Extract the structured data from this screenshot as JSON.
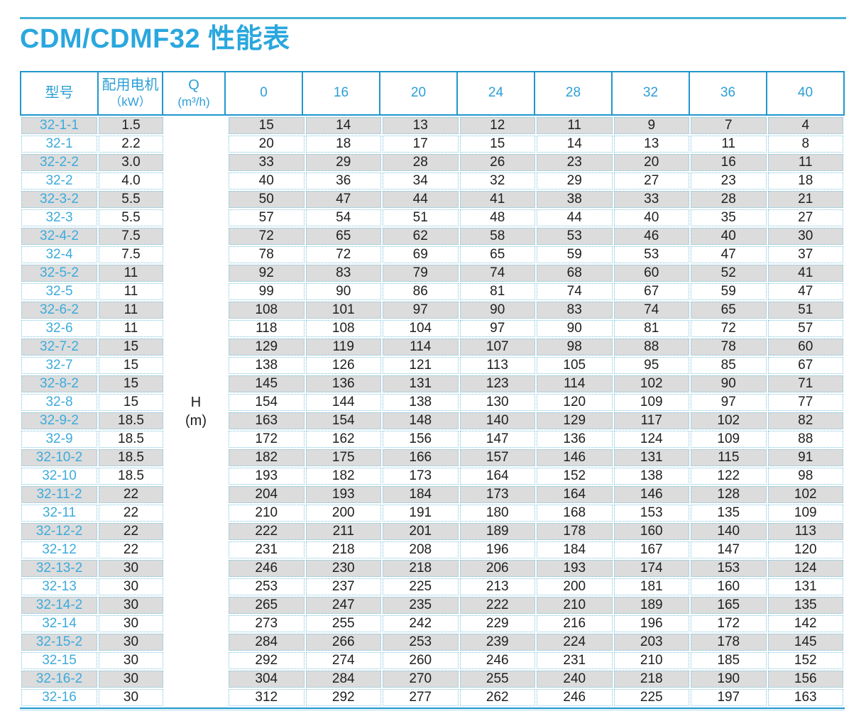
{
  "page": {
    "title": "CDM/CDMF32 性能表"
  },
  "colors": {
    "title_blue": "#2aa7de",
    "solid_border_blue": "#2196cd",
    "dotted_border_cyan": "#7cc3dc",
    "row_stripe_gray": "#dcdcdc",
    "model_text_blue": "#3dabdc",
    "top_rule_teal": "#44b2d2"
  },
  "table": {
    "header": {
      "model": "型号",
      "motor_line1": "配用电机",
      "motor_line2": "（kW）",
      "q_line1": "Q",
      "q_line2": "(m³/h)",
      "flows": [
        "0",
        "16",
        "20",
        "24",
        "28",
        "32",
        "36",
        "40"
      ]
    },
    "h_label": {
      "line1": "H",
      "line2": "(m)"
    },
    "rows": [
      {
        "model": "32-1-1",
        "kw": "1.5",
        "values": [
          15,
          14,
          13,
          12,
          11,
          9,
          7,
          4
        ]
      },
      {
        "model": "32-1",
        "kw": "2.2",
        "values": [
          20,
          18,
          17,
          15,
          14,
          13,
          11,
          8
        ]
      },
      {
        "model": "32-2-2",
        "kw": "3.0",
        "values": [
          33,
          29,
          28,
          26,
          23,
          20,
          16,
          11
        ]
      },
      {
        "model": "32-2",
        "kw": "4.0",
        "values": [
          40,
          36,
          34,
          32,
          29,
          27,
          23,
          18
        ]
      },
      {
        "model": "32-3-2",
        "kw": "5.5",
        "values": [
          50,
          47,
          44,
          41,
          38,
          33,
          28,
          21
        ]
      },
      {
        "model": "32-3",
        "kw": "5.5",
        "values": [
          57,
          54,
          51,
          48,
          44,
          40,
          35,
          27
        ]
      },
      {
        "model": "32-4-2",
        "kw": "7.5",
        "values": [
          72,
          65,
          62,
          58,
          53,
          46,
          40,
          30
        ]
      },
      {
        "model": "32-4",
        "kw": "7.5",
        "values": [
          78,
          72,
          69,
          65,
          59,
          53,
          47,
          37
        ]
      },
      {
        "model": "32-5-2",
        "kw": "11",
        "values": [
          92,
          83,
          79,
          74,
          68,
          60,
          52,
          41
        ]
      },
      {
        "model": "32-5",
        "kw": "11",
        "values": [
          99,
          90,
          86,
          81,
          74,
          67,
          59,
          47
        ]
      },
      {
        "model": "32-6-2",
        "kw": "11",
        "values": [
          108,
          101,
          97,
          90,
          83,
          74,
          65,
          51
        ]
      },
      {
        "model": "32-6",
        "kw": "11",
        "values": [
          118,
          108,
          104,
          97,
          90,
          81,
          72,
          57
        ]
      },
      {
        "model": "32-7-2",
        "kw": "15",
        "values": [
          129,
          119,
          114,
          107,
          98,
          88,
          78,
          60
        ]
      },
      {
        "model": "32-7",
        "kw": "15",
        "values": [
          138,
          126,
          121,
          113,
          105,
          95,
          85,
          67
        ]
      },
      {
        "model": "32-8-2",
        "kw": "15",
        "values": [
          145,
          136,
          131,
          123,
          114,
          102,
          90,
          71
        ]
      },
      {
        "model": "32-8",
        "kw": "15",
        "values": [
          154,
          144,
          138,
          130,
          120,
          109,
          97,
          77
        ]
      },
      {
        "model": "32-9-2",
        "kw": "18.5",
        "values": [
          163,
          154,
          148,
          140,
          129,
          117,
          102,
          82
        ]
      },
      {
        "model": "32-9",
        "kw": "18.5",
        "values": [
          172,
          162,
          156,
          147,
          136,
          124,
          109,
          88
        ]
      },
      {
        "model": "32-10-2",
        "kw": "18.5",
        "values": [
          182,
          175,
          166,
          157,
          146,
          131,
          115,
          91
        ]
      },
      {
        "model": "32-10",
        "kw": "18.5",
        "values": [
          193,
          182,
          173,
          164,
          152,
          138,
          122,
          98
        ]
      },
      {
        "model": "32-11-2",
        "kw": "22",
        "values": [
          204,
          193,
          184,
          173,
          164,
          146,
          128,
          102
        ]
      },
      {
        "model": "32-11",
        "kw": "22",
        "values": [
          210,
          200,
          191,
          180,
          168,
          153,
          135,
          109
        ]
      },
      {
        "model": "32-12-2",
        "kw": "22",
        "values": [
          222,
          211,
          201,
          189,
          178,
          160,
          140,
          113
        ]
      },
      {
        "model": "32-12",
        "kw": "22",
        "values": [
          231,
          218,
          208,
          196,
          184,
          167,
          147,
          120
        ]
      },
      {
        "model": "32-13-2",
        "kw": "30",
        "values": [
          246,
          230,
          218,
          206,
          193,
          174,
          153,
          124
        ]
      },
      {
        "model": "32-13",
        "kw": "30",
        "values": [
          253,
          237,
          225,
          213,
          200,
          181,
          160,
          131
        ]
      },
      {
        "model": "32-14-2",
        "kw": "30",
        "values": [
          265,
          247,
          235,
          222,
          210,
          189,
          165,
          135
        ]
      },
      {
        "model": "32-14",
        "kw": "30",
        "values": [
          273,
          255,
          242,
          229,
          216,
          196,
          172,
          142
        ]
      },
      {
        "model": "32-15-2",
        "kw": "30",
        "values": [
          284,
          266,
          253,
          239,
          224,
          203,
          178,
          145
        ]
      },
      {
        "model": "32-15",
        "kw": "30",
        "values": [
          292,
          274,
          260,
          246,
          231,
          210,
          185,
          152
        ]
      },
      {
        "model": "32-16-2",
        "kw": "30",
        "values": [
          304,
          284,
          270,
          255,
          240,
          218,
          190,
          156
        ]
      },
      {
        "model": "32-16",
        "kw": "30",
        "values": [
          312,
          292,
          277,
          262,
          246,
          225,
          197,
          163
        ]
      }
    ]
  }
}
